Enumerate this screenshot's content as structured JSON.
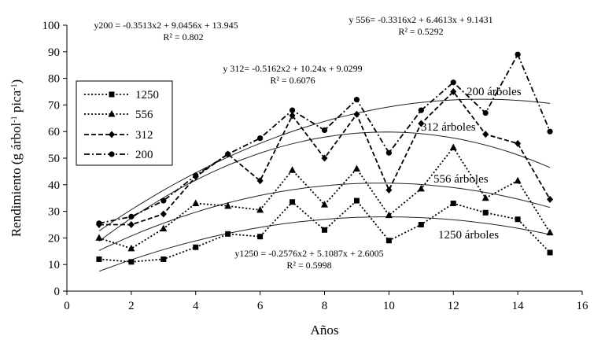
{
  "chart_data": {
    "type": "line",
    "xlabel": "Años",
    "ylabel_parts": [
      "Rendimiento (g árbol",
      "-1",
      " pica",
      "-1",
      ")"
    ],
    "xlim": [
      0,
      16
    ],
    "ylim": [
      0,
      100
    ],
    "xticks": [
      0,
      2,
      4,
      6,
      8,
      10,
      12,
      14,
      16
    ],
    "yticks": [
      0,
      10,
      20,
      30,
      40,
      50,
      60,
      70,
      80,
      90,
      100
    ],
    "grid": false,
    "legend_position": "left",
    "x": [
      1,
      2,
      3,
      4,
      5,
      6,
      7,
      8,
      9,
      10,
      11,
      12,
      13,
      14,
      15
    ],
    "series": [
      {
        "name": "1250",
        "marker": "square",
        "dash": "dotted",
        "values": [
          12,
          11,
          12,
          16.5,
          21.5,
          20.5,
          33.5,
          23,
          34,
          19,
          25,
          33,
          29.5,
          27,
          14.5
        ]
      },
      {
        "name": "556",
        "marker": "triangle",
        "dash": "dotted",
        "values": [
          20,
          16,
          23.5,
          33,
          32,
          30.5,
          45.5,
          32.5,
          46,
          28.5,
          38.5,
          54,
          35,
          41.5,
          22
        ]
      },
      {
        "name": "312",
        "marker": "diamond",
        "dash": "dashed",
        "values": [
          25,
          25,
          29,
          43,
          51.5,
          41.5,
          66,
          50,
          66.5,
          38,
          63,
          75,
          59,
          55.5,
          34.5
        ]
      },
      {
        "name": "200",
        "marker": "circle",
        "dash": "dashdot",
        "values": [
          25.5,
          28,
          34,
          43.5,
          51.5,
          57.5,
          68,
          60.5,
          72,
          52,
          68,
          78.5,
          67,
          89,
          60
        ]
      }
    ],
    "trendlines": [
      {
        "for": "200",
        "a": -0.3513,
        "b": 9.0456,
        "c": 13.945,
        "label": "200 árboles",
        "equation": "y200 = -0.3513x2 + 9.0456x + 13.945",
        "r2": "R² = 0.802"
      },
      {
        "for": "312",
        "a": -0.5162,
        "b": 10.24,
        "c": 9.0299,
        "label": "312 árboles",
        "equation": "y 312= -0.5162x2 + 10.24x + 9.0299",
        "r2": "R² = 0.6076"
      },
      {
        "for": "556",
        "a": -0.3316,
        "b": 6.4613,
        "c": 9.1431,
        "label": "556 árboles",
        "equation": "y 556= -0.3316x2 + 6.4613x + 9.1431",
        "r2": "R² = 0.5292"
      },
      {
        "for": "1250",
        "a": -0.2576,
        "b": 5.1087,
        "c": 2.6005,
        "label": "1250 árboles",
        "equation": "y1250 = -0.2576x2 + 5.1087x + 2.6005",
        "r2": "R² = 0.5998"
      }
    ]
  }
}
